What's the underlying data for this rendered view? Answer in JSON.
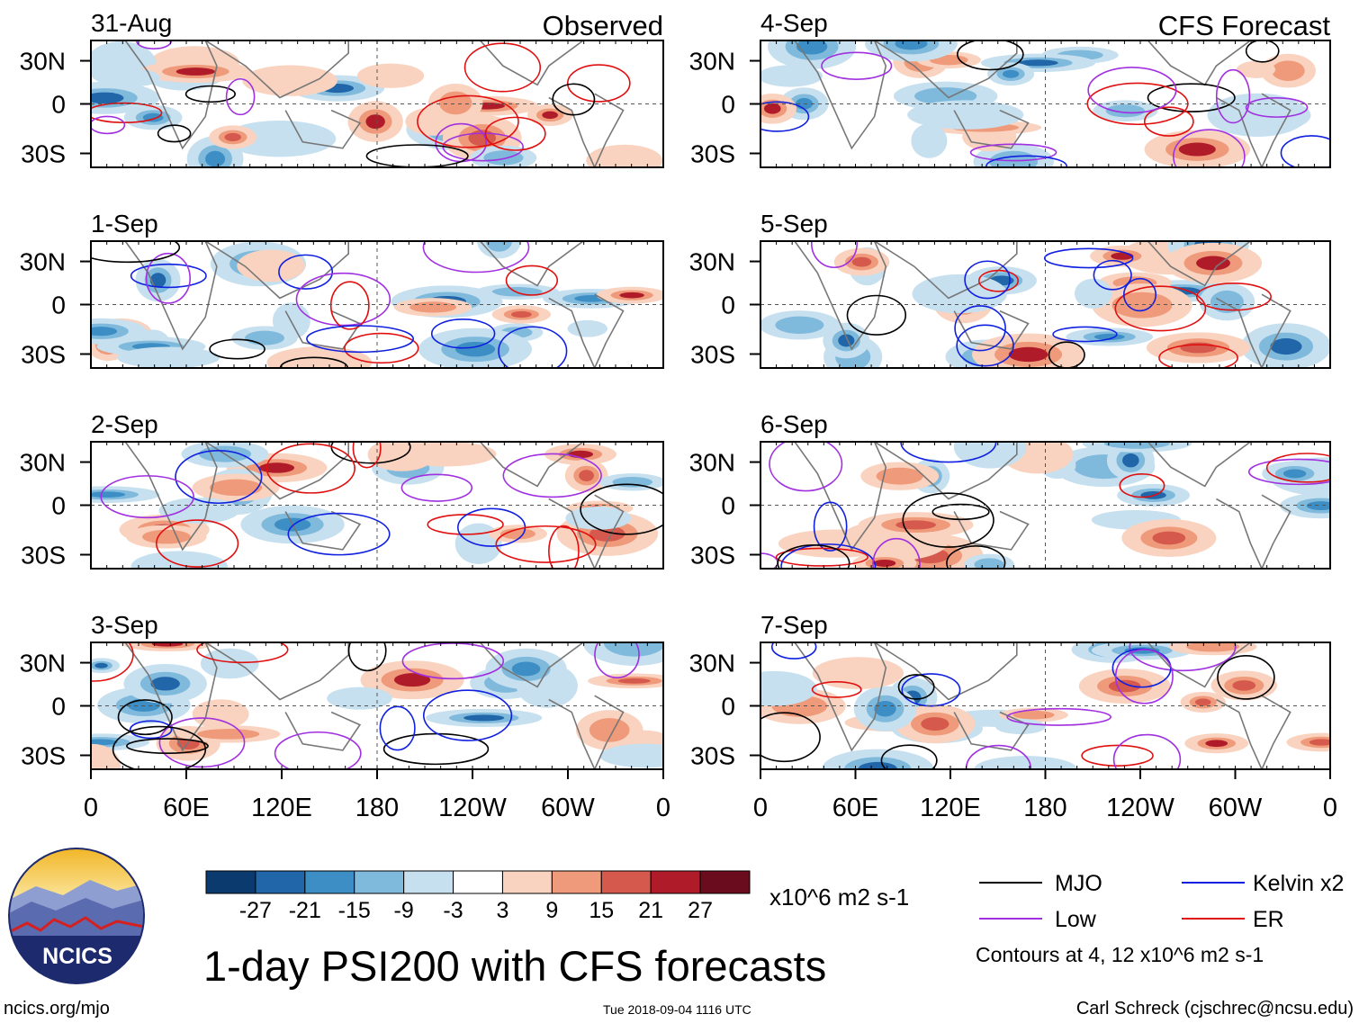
{
  "chart_data": {
    "type": "heatmap",
    "title": "1-day PSI200 with CFS forecasts",
    "variable": "PSI200",
    "units": "x10^6 m2 s-1",
    "panel_headers": {
      "observed": "Observed",
      "forecast": "CFS Forecast"
    },
    "lon_ticks": [
      "0",
      "60E",
      "120E",
      "180",
      "120W",
      "60W",
      "0"
    ],
    "lat_ticks": [
      "30N",
      "0",
      "30S"
    ],
    "lon_range": [
      0,
      360
    ],
    "lat_range": [
      -40,
      40
    ],
    "colorbar": {
      "ticks": [
        "-27",
        "-21",
        "-15",
        "-9",
        "-3",
        "3",
        "9",
        "15",
        "21",
        "27"
      ],
      "colors": [
        "#0b3b6e",
        "#2066a8",
        "#3c8ec4",
        "#7fb9dc",
        "#c6e0ef",
        "#ffffff",
        "#f9d3bf",
        "#ef9a7a",
        "#d55a4d",
        "#b01b2a",
        "#6b0b1e"
      ]
    },
    "legend": {
      "items": [
        {
          "label": "MJO",
          "color": "#000000"
        },
        {
          "label": "Kelvin x2",
          "color": "#1020e0"
        },
        {
          "label": "Low",
          "color": "#a030e0"
        },
        {
          "label": "ER",
          "color": "#e01010"
        }
      ],
      "note": "Contours at 4, 12 x10^6 m2 s-1"
    },
    "panels": [
      {
        "date": "31-Aug",
        "kind": "observed"
      },
      {
        "date": "1-Sep",
        "kind": "observed"
      },
      {
        "date": "2-Sep",
        "kind": "observed"
      },
      {
        "date": "3-Sep",
        "kind": "observed"
      },
      {
        "date": "4-Sep",
        "kind": "forecast"
      },
      {
        "date": "5-Sep",
        "kind": "forecast"
      },
      {
        "date": "6-Sep",
        "kind": "forecast"
      },
      {
        "date": "7-Sep",
        "kind": "forecast"
      }
    ]
  },
  "logo": {
    "text": "NCICS"
  },
  "footer": {
    "url": "ncics.org/mjo",
    "timestamp": "Tue 2018-09-04 1116 UTC",
    "credit": "Carl Schreck (cjschrec@ncsu.edu)"
  }
}
